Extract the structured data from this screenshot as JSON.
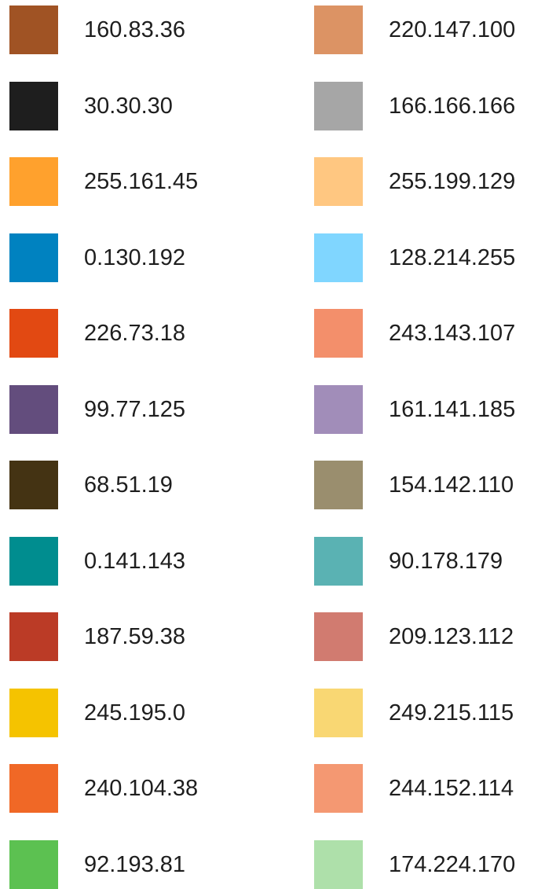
{
  "palette": {
    "left_column": [
      {
        "label": "160.83.36",
        "color": "#a05324"
      },
      {
        "label": "30.30.30",
        "color": "#1e1e1e"
      },
      {
        "label": "255.161.45",
        "color": "#ffa12d"
      },
      {
        "label": "0.130.192",
        "color": "#0082c0"
      },
      {
        "label": "226.73.18",
        "color": "#e24912"
      },
      {
        "label": "99.77.125",
        "color": "#634d7d"
      },
      {
        "label": "68.51.19",
        "color": "#443313"
      },
      {
        "label": "0.141.143",
        "color": "#008d8f"
      },
      {
        "label": "187.59.38",
        "color": "#bb3b26"
      },
      {
        "label": "245.195.0",
        "color": "#f5c300"
      },
      {
        "label": "240.104.38",
        "color": "#f06826"
      },
      {
        "label": "92.193.81",
        "color": "#5cc151"
      }
    ],
    "right_column": [
      {
        "label": "220.147.100",
        "color": "#dc9364"
      },
      {
        "label": "166.166.166",
        "color": "#a6a6a6"
      },
      {
        "label": "255.199.129",
        "color": "#ffc781"
      },
      {
        "label": "128.214.255",
        "color": "#80d6ff"
      },
      {
        "label": "243.143.107",
        "color": "#f38f6b"
      },
      {
        "label": "161.141.185",
        "color": "#a18db9"
      },
      {
        "label": "154.142.110",
        "color": "#9a8e6e"
      },
      {
        "label": "90.178.179",
        "color": "#5ab2b3"
      },
      {
        "label": "209.123.112",
        "color": "#d17b70"
      },
      {
        "label": "249.215.115",
        "color": "#f9d773"
      },
      {
        "label": "244.152.114",
        "color": "#f49872"
      },
      {
        "label": "174.224.170",
        "color": "#aee0aa"
      }
    ]
  }
}
